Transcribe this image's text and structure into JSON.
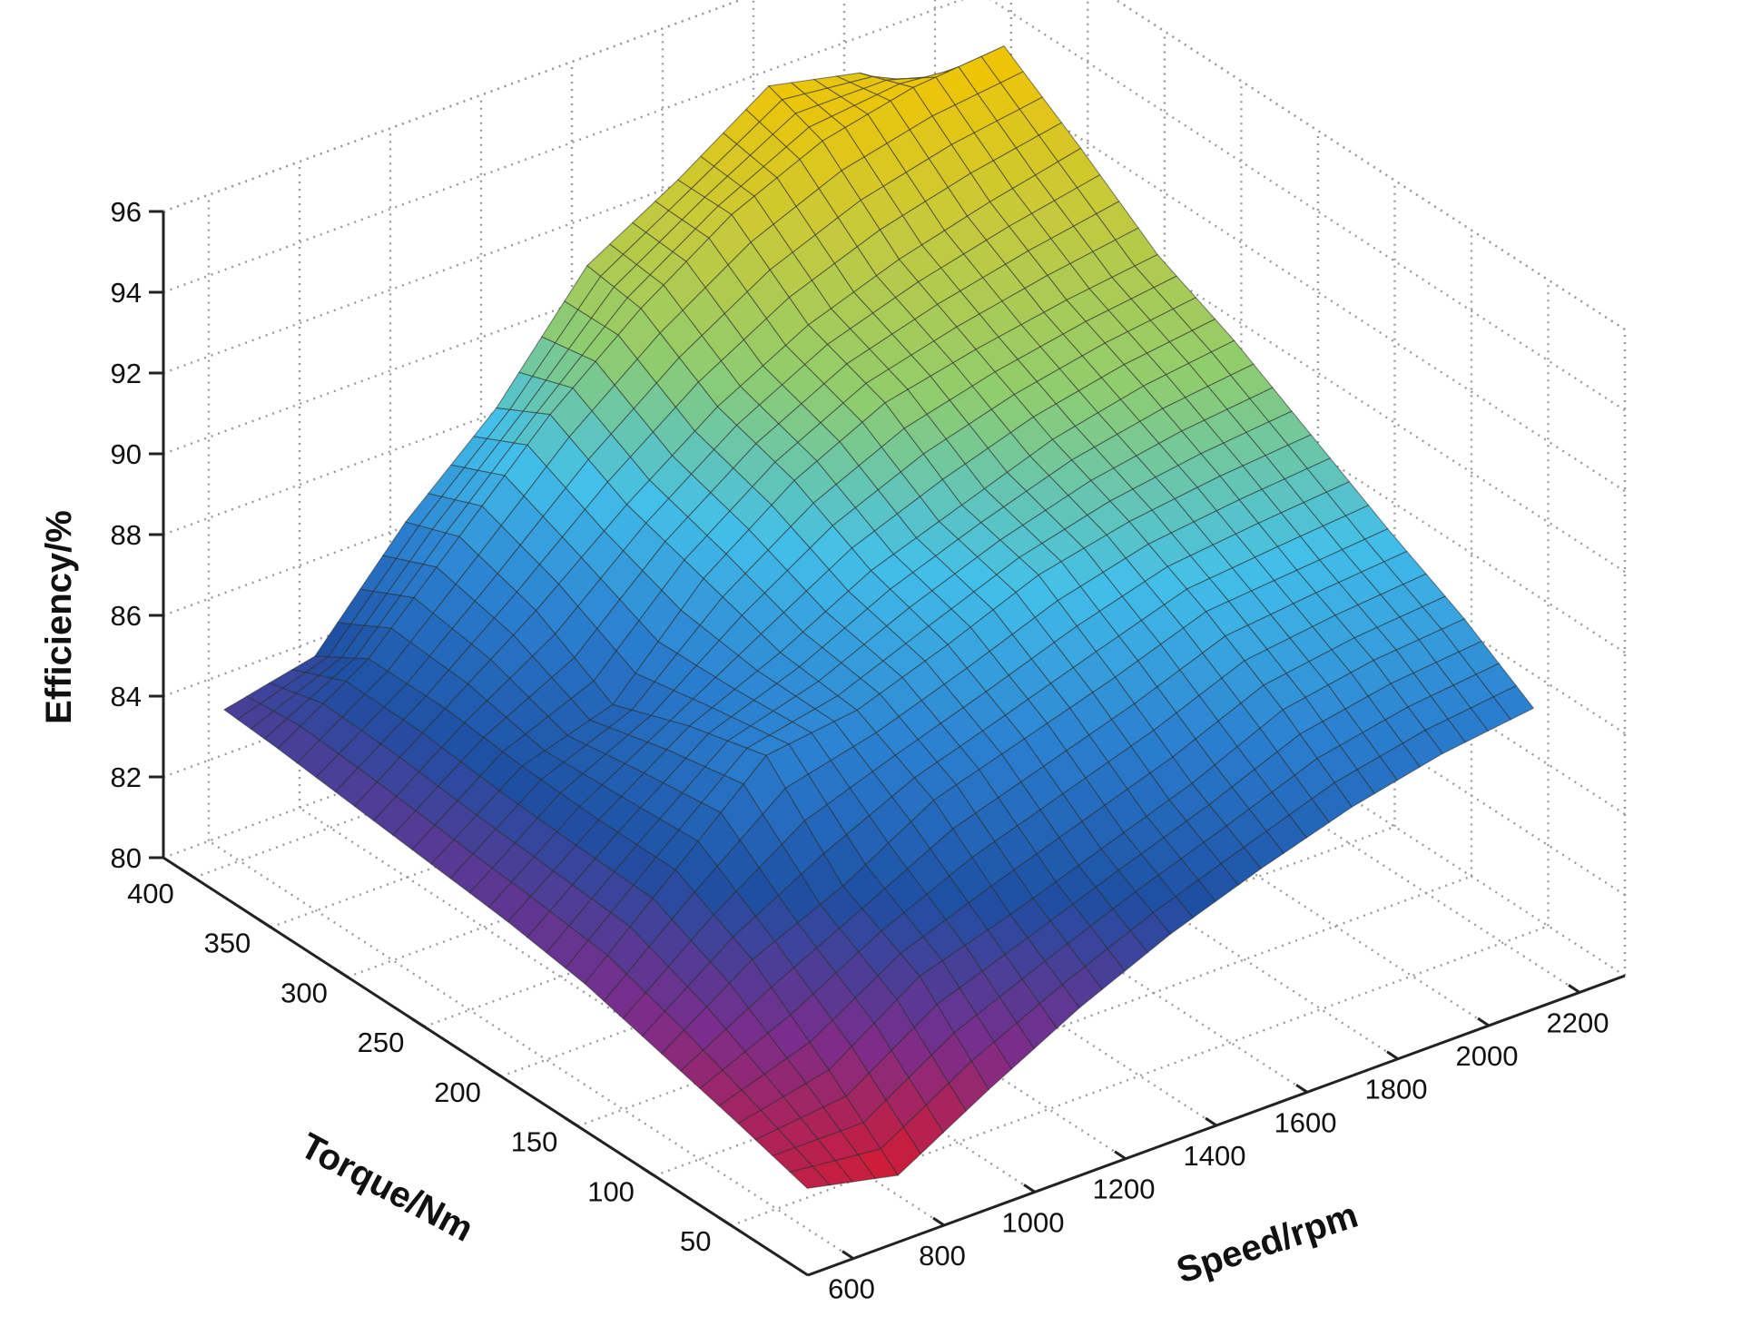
{
  "chart_data": {
    "type": "surface3d",
    "title": "",
    "xlabel": "Speed/rpm",
    "ylabel": "Torque/Nm",
    "zlabel": "Efficiency/%",
    "xlim": [
      500,
      2300
    ],
    "ylim": [
      0,
      420
    ],
    "zlim": [
      80,
      96
    ],
    "xticks": [
      "600",
      "800",
      "1000",
      "1200",
      "1400",
      "1600",
      "1800",
      "2000",
      "2200"
    ],
    "yticks": [
      "50",
      "100",
      "150",
      "200",
      "250",
      "300",
      "350",
      "400"
    ],
    "zticks": [
      "80",
      "82",
      "84",
      "86",
      "88",
      "90",
      "92",
      "94",
      "96"
    ],
    "grid": true,
    "colormap": {
      "type": "jet-like",
      "stops": [
        "#d81b2f",
        "#7a2d8c",
        "#1e4fa3",
        "#2b7fd0",
        "#43bfea",
        "#8fcc6f",
        "#c8c93a",
        "#f2c400"
      ]
    },
    "surface": {
      "speed_rpm": [
        600,
        800,
        1000,
        1200,
        1400,
        1600,
        1800,
        2000,
        2200
      ],
      "torque_nm": [
        30,
        75,
        125,
        175,
        225,
        275,
        325,
        375,
        410
      ],
      "efficiency_pct": [
        [
          81.0,
          80.5,
          81.8,
          83.0,
          84.0,
          84.8,
          85.5,
          86.0,
          86.3
        ],
        [
          81.5,
          82.0,
          83.5,
          84.2,
          85.0,
          85.8,
          86.8,
          87.2,
          87.4
        ],
        [
          82.0,
          83.5,
          84.5,
          85.8,
          86.5,
          87.2,
          88.0,
          88.2,
          88.4
        ],
        [
          82.5,
          84.5,
          86.5,
          86.8,
          87.6,
          88.5,
          89.0,
          89.3,
          89.5
        ],
        [
          82.8,
          84.5,
          86.0,
          87.0,
          88.2,
          89.0,
          89.8,
          90.3,
          90.6
        ],
        [
          83.0,
          84.6,
          85.3,
          87.6,
          89.2,
          90.3,
          90.8,
          91.2,
          91.5
        ],
        [
          83.2,
          84.8,
          86.4,
          88.2,
          89.8,
          91.0,
          91.8,
          92.4,
          92.9
        ],
        [
          83.4,
          84.8,
          87.0,
          89.2,
          91.0,
          92.5,
          93.5,
          94.0,
          94.2
        ],
        [
          83.5,
          84.0,
          86.5,
          88.5,
          91.2,
          92.5,
          94.0,
          93.5,
          92.0
        ]
      ]
    }
  }
}
